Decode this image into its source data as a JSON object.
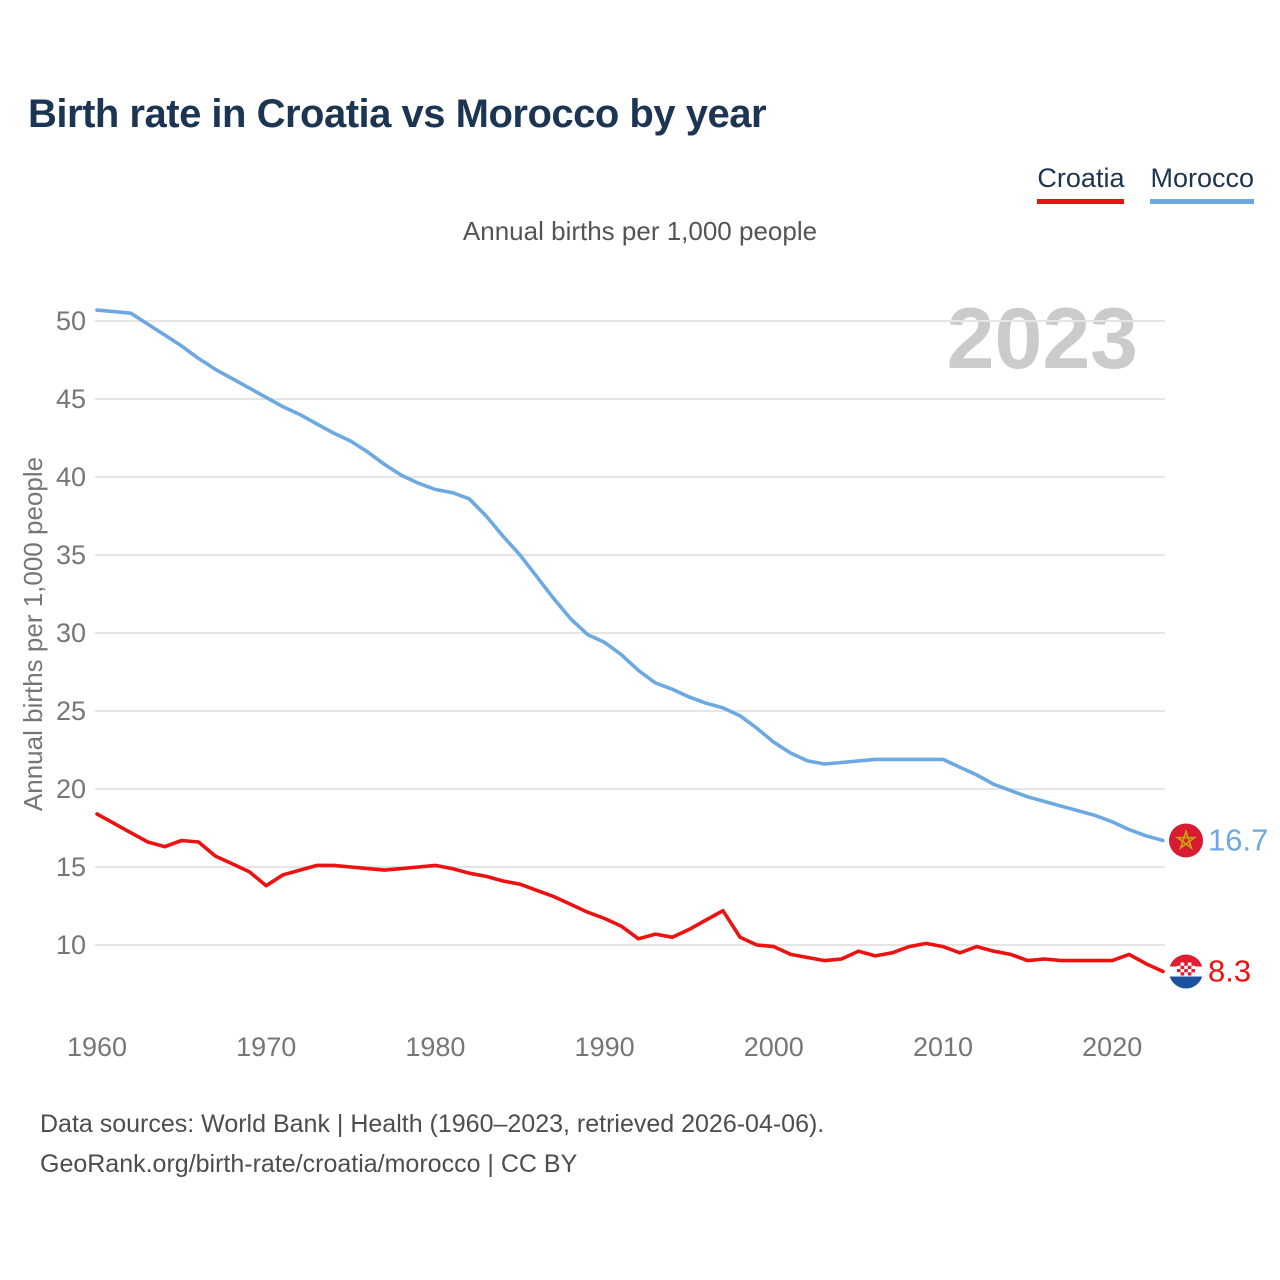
{
  "title": "Birth rate in Croatia vs Morocco by year",
  "subtitle": "Annual births per 1,000 people",
  "watermark": "2023",
  "legend": {
    "items": [
      {
        "label": "Croatia",
        "color": "#ee1111"
      },
      {
        "label": "Morocco",
        "color": "#6ca9e2"
      }
    ]
  },
  "footer": {
    "line1": "Data sources: World Bank | Health (1960–2023, retrieved 2026-04-06).",
    "line2": "GeoRank.org/birth-rate/croatia/morocco | CC BY"
  },
  "colors": {
    "croatia_line": "#ee1111",
    "morocco_line": "#6ca9e2",
    "title_text": "#1b3553",
    "axis_text": "#767676",
    "gridline": "#e5e5e5",
    "watermark_text": "#cbcbcb",
    "morocco_flag_red": "#d81a33",
    "morocco_flag_star": "#c79b16",
    "croatia_flag_red": "#e01e30",
    "croatia_flag_blue": "#1e50a0"
  },
  "chart_data": {
    "type": "line",
    "title": "Birth rate in Croatia vs Morocco by year",
    "xlabel": "",
    "ylabel": "Annual births per 1,000 people",
    "xlim": [
      1960,
      2023
    ],
    "ylim": [
      7,
      52
    ],
    "x_ticks": [
      1960,
      1970,
      1980,
      1990,
      2000,
      2010,
      2020
    ],
    "y_ticks": [
      10,
      15,
      20,
      25,
      30,
      35,
      40,
      45,
      50
    ],
    "grid": "horizontal-only",
    "legend_position": "top-right",
    "watermark": "2023",
    "years": [
      1960,
      1961,
      1962,
      1963,
      1964,
      1965,
      1966,
      1967,
      1968,
      1969,
      1970,
      1971,
      1972,
      1973,
      1974,
      1975,
      1976,
      1977,
      1978,
      1979,
      1980,
      1981,
      1982,
      1983,
      1984,
      1985,
      1986,
      1987,
      1988,
      1989,
      1990,
      1991,
      1992,
      1993,
      1994,
      1995,
      1996,
      1997,
      1998,
      1999,
      2000,
      2001,
      2002,
      2003,
      2004,
      2005,
      2006,
      2007,
      2008,
      2009,
      2010,
      2011,
      2012,
      2013,
      2014,
      2015,
      2016,
      2017,
      2018,
      2019,
      2020,
      2021,
      2022,
      2023
    ],
    "series": [
      {
        "name": "Morocco",
        "color": "#6ca9e2",
        "end_label": "16.7",
        "end_flag": "morocco-flag",
        "values": [
          50.7,
          50.6,
          50.5,
          49.8,
          49.1,
          48.4,
          47.6,
          46.9,
          46.3,
          45.7,
          45.1,
          44.5,
          44.0,
          43.4,
          42.8,
          42.3,
          41.6,
          40.8,
          40.1,
          39.6,
          39.2,
          39.0,
          38.6,
          37.5,
          36.2,
          35.0,
          33.6,
          32.2,
          30.9,
          29.9,
          29.4,
          28.6,
          27.6,
          26.8,
          26.4,
          25.9,
          25.5,
          25.2,
          24.7,
          23.9,
          23.0,
          22.3,
          21.8,
          21.6,
          21.7,
          21.8,
          21.9,
          21.9,
          21.9,
          21.9,
          21.9,
          21.4,
          20.9,
          20.3,
          19.9,
          19.5,
          19.2,
          18.9,
          18.6,
          18.3,
          17.9,
          17.4,
          17.0,
          16.7
        ]
      },
      {
        "name": "Croatia",
        "color": "#ee1111",
        "end_label": "8.3",
        "end_flag": "croatia-flag",
        "values": [
          18.4,
          17.8,
          17.2,
          16.6,
          16.3,
          16.7,
          16.6,
          15.7,
          15.2,
          14.7,
          13.8,
          14.5,
          14.8,
          15.1,
          15.1,
          15.0,
          14.9,
          14.8,
          14.9,
          15.0,
          15.1,
          14.9,
          14.6,
          14.4,
          14.1,
          13.9,
          13.5,
          13.1,
          12.6,
          12.1,
          11.7,
          11.2,
          10.4,
          10.7,
          10.5,
          11.0,
          11.6,
          12.2,
          10.5,
          10.0,
          9.9,
          9.4,
          9.2,
          9.0,
          9.1,
          9.6,
          9.3,
          9.5,
          9.9,
          10.1,
          9.9,
          9.5,
          9.9,
          9.6,
          9.4,
          9.0,
          9.1,
          9.0,
          9.0,
          9.0,
          9.0,
          9.4,
          8.8,
          8.3
        ]
      }
    ]
  }
}
